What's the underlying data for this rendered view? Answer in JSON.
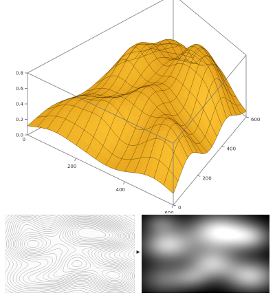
{
  "chart_data": [
    {
      "type": "surface",
      "surface": {
        "x_range": [
          0,
          600
        ],
        "y_range": [
          0,
          600
        ],
        "z_range": [
          0,
          0.8
        ],
        "x_ticks": [
          {
            "value": 200,
            "label": "200"
          },
          {
            "value": 400,
            "label": "400"
          },
          {
            "value": 600,
            "label": "600"
          }
        ],
        "y_ticks": [
          {
            "value": 0,
            "label": "0"
          },
          {
            "value": 200,
            "label": "200"
          },
          {
            "value": 400,
            "label": "400"
          },
          {
            "value": 600,
            "label": "600"
          }
        ],
        "z_ticks": [
          {
            "value": 0.0,
            "label": "0.0"
          },
          {
            "value": 0.2,
            "label": "0.2"
          },
          {
            "value": 0.4,
            "label": "0.4"
          },
          {
            "value": 0.6,
            "label": "0.6"
          },
          {
            "value": 0.8,
            "label": "0.8"
          }
        ],
        "x_origin_label": "0",
        "box": true,
        "mesh_lines": 15,
        "colors": {
          "face_light": "#ffc734",
          "face_dark": "#c97a00",
          "mesh": "#3a2a00",
          "box": "#777777"
        }
      }
    },
    {
      "type": "contour",
      "x_range": [
        0,
        600
      ],
      "y_range": [
        0,
        600
      ],
      "levels": 22,
      "colors": {
        "lines": "#9a9a9a",
        "background": "#fbfbfb"
      }
    },
    {
      "type": "heatmap",
      "x_range": [
        0,
        600
      ],
      "y_range": [
        0,
        600
      ],
      "colors": {
        "low": "#000000",
        "high": "#ffffff"
      }
    }
  ],
  "arrow": "▸"
}
